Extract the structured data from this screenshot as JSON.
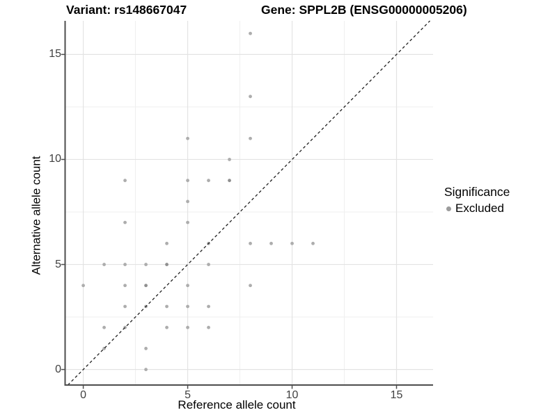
{
  "titles": {
    "left": "Variant: rs148667047",
    "right": "Gene: SPPL2B (ENSG00000005206)"
  },
  "chart_data": {
    "type": "scatter",
    "xlabel": "Reference allele count",
    "ylabel": "Alternative allele count",
    "xlim": [
      -0.87,
      16.75
    ],
    "ylim": [
      -0.74,
      16.6
    ],
    "x_ticks": [
      0,
      5,
      10,
      15
    ],
    "y_ticks": [
      0,
      5,
      10,
      15
    ],
    "x_minor_ticks": [
      2.5,
      7.5,
      12.5
    ],
    "y_minor_ticks": [
      2.5,
      7.5,
      12.5
    ],
    "grid": true,
    "identity_line": {
      "type": "dashed",
      "slope": 1,
      "intercept": 0
    },
    "series": [
      {
        "name": "Excluded",
        "points": [
          [
            3,
            0,
            1
          ],
          [
            1,
            1,
            1
          ],
          [
            3,
            1,
            1
          ],
          [
            1,
            2,
            1
          ],
          [
            2,
            2,
            1
          ],
          [
            4,
            2,
            1
          ],
          [
            5,
            2,
            1
          ],
          [
            6,
            2,
            1
          ],
          [
            2,
            3,
            1
          ],
          [
            3,
            3,
            1
          ],
          [
            4,
            3,
            1
          ],
          [
            5,
            3,
            1
          ],
          [
            6,
            3,
            1
          ],
          [
            0,
            4,
            1
          ],
          [
            2,
            4,
            1
          ],
          [
            3,
            4,
            2
          ],
          [
            5,
            4,
            1
          ],
          [
            8,
            4,
            1
          ],
          [
            1,
            5,
            1
          ],
          [
            2,
            5,
            1
          ],
          [
            3,
            5,
            1
          ],
          [
            4,
            5,
            2
          ],
          [
            6,
            5,
            1
          ],
          [
            4,
            6,
            1
          ],
          [
            6,
            6,
            1
          ],
          [
            8,
            6,
            1
          ],
          [
            9,
            6,
            1
          ],
          [
            10,
            6,
            1
          ],
          [
            11,
            6,
            1
          ],
          [
            2,
            7,
            1
          ],
          [
            5,
            7,
            1
          ],
          [
            5,
            8,
            1
          ],
          [
            2,
            9,
            1
          ],
          [
            5,
            9,
            1
          ],
          [
            6,
            9,
            1
          ],
          [
            7,
            9,
            2
          ],
          [
            7,
            10,
            1
          ],
          [
            5,
            11,
            1
          ],
          [
            8,
            11,
            1
          ],
          [
            8,
            13,
            1
          ],
          [
            8,
            16,
            1
          ]
        ]
      }
    ],
    "legend": {
      "title": "Significance",
      "position": "right",
      "items": [
        {
          "label": "Excluded",
          "color": "#9c9c9c"
        }
      ]
    }
  },
  "colors": {
    "point": "#adadad",
    "point_overlap": "#8f8f8f",
    "grid_major": "#e3e3e3",
    "grid_minor": "#efefef",
    "axis_line": "#4d4d4d",
    "identity_line": "#1f1f1f",
    "tick_text": "#404040",
    "background": "#ffffff"
  }
}
